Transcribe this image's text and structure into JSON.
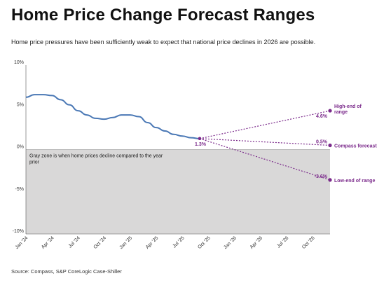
{
  "header": {
    "title": "Home Price Change Forecast Ranges",
    "subtitle": "Home price pressures have been sufficiently weak to expect that national price declines in 2026 are possible."
  },
  "footer": {
    "source": "Source: Compass, S&P CoreLogic Case-Shiller"
  },
  "colors": {
    "history_line": "#4a78b5",
    "forecast": "#7b2a8b",
    "decline_zone": "#d9d8d8",
    "axis": "#555555"
  },
  "chart_data": {
    "type": "line",
    "title": "",
    "xlabel": "",
    "ylabel": "",
    "ylim": [
      -10,
      10
    ],
    "y_ticks": [
      {
        "value": 10,
        "label": "10%"
      },
      {
        "value": 5,
        "label": "5%"
      },
      {
        "value": 0,
        "label": "0%"
      },
      {
        "value": -5,
        "label": "-5%"
      },
      {
        "value": -10,
        "label": "-10%"
      }
    ],
    "x_ticks": [
      "Jan '24",
      "Apr '24",
      "Jul '24",
      "Oct '24",
      "Jan '25",
      "Apr '25",
      "Jul '25",
      "Oct '25",
      "Jan '26",
      "Apr '26",
      "Jul '26",
      "Oct '26"
    ],
    "x_range_months": [
      "2024-01",
      "2026-12"
    ],
    "decline_zone_note": "Gray zone is when home prices decline compared to the year prior",
    "series": [
      {
        "kind": "history",
        "points": [
          {
            "x": "2024-01",
            "y": 6.2
          },
          {
            "x": "2024-02",
            "y": 6.5
          },
          {
            "x": "2024-03",
            "y": 6.5
          },
          {
            "x": "2024-04",
            "y": 6.4
          },
          {
            "x": "2024-05",
            "y": 5.9
          },
          {
            "x": "2024-06",
            "y": 5.3
          },
          {
            "x": "2024-07",
            "y": 4.6
          },
          {
            "x": "2024-08",
            "y": 4.1
          },
          {
            "x": "2024-09",
            "y": 3.7
          },
          {
            "x": "2024-10",
            "y": 3.6
          },
          {
            "x": "2024-11",
            "y": 3.8
          },
          {
            "x": "2024-12",
            "y": 4.1
          },
          {
            "x": "2025-01",
            "y": 4.1
          },
          {
            "x": "2025-02",
            "y": 3.9
          },
          {
            "x": "2025-03",
            "y": 3.2
          },
          {
            "x": "2025-04",
            "y": 2.6
          },
          {
            "x": "2025-05",
            "y": 2.2
          },
          {
            "x": "2025-06",
            "y": 1.8
          },
          {
            "x": "2025-07",
            "y": 1.6
          },
          {
            "x": "2025-08",
            "y": 1.4
          },
          {
            "x": "2025-09",
            "y": 1.3
          }
        ]
      },
      {
        "kind": "forecast",
        "name": "High-end of range",
        "points": [
          {
            "x": "2025-09",
            "y": 1.3
          },
          {
            "x": "2026-12",
            "y": 4.6
          }
        ],
        "end_label": "4.6%"
      },
      {
        "kind": "forecast",
        "name": "Compass forecast",
        "points": [
          {
            "x": "2025-09",
            "y": 1.3
          },
          {
            "x": "2026-12",
            "y": 0.5
          }
        ],
        "end_label": "0.5%"
      },
      {
        "kind": "forecast",
        "name": "Low-end of range",
        "points": [
          {
            "x": "2025-09",
            "y": 1.3
          },
          {
            "x": "2026-12",
            "y": -3.6
          }
        ],
        "end_label": "-3.6%"
      }
    ],
    "last_actual_label": "1.3%"
  }
}
